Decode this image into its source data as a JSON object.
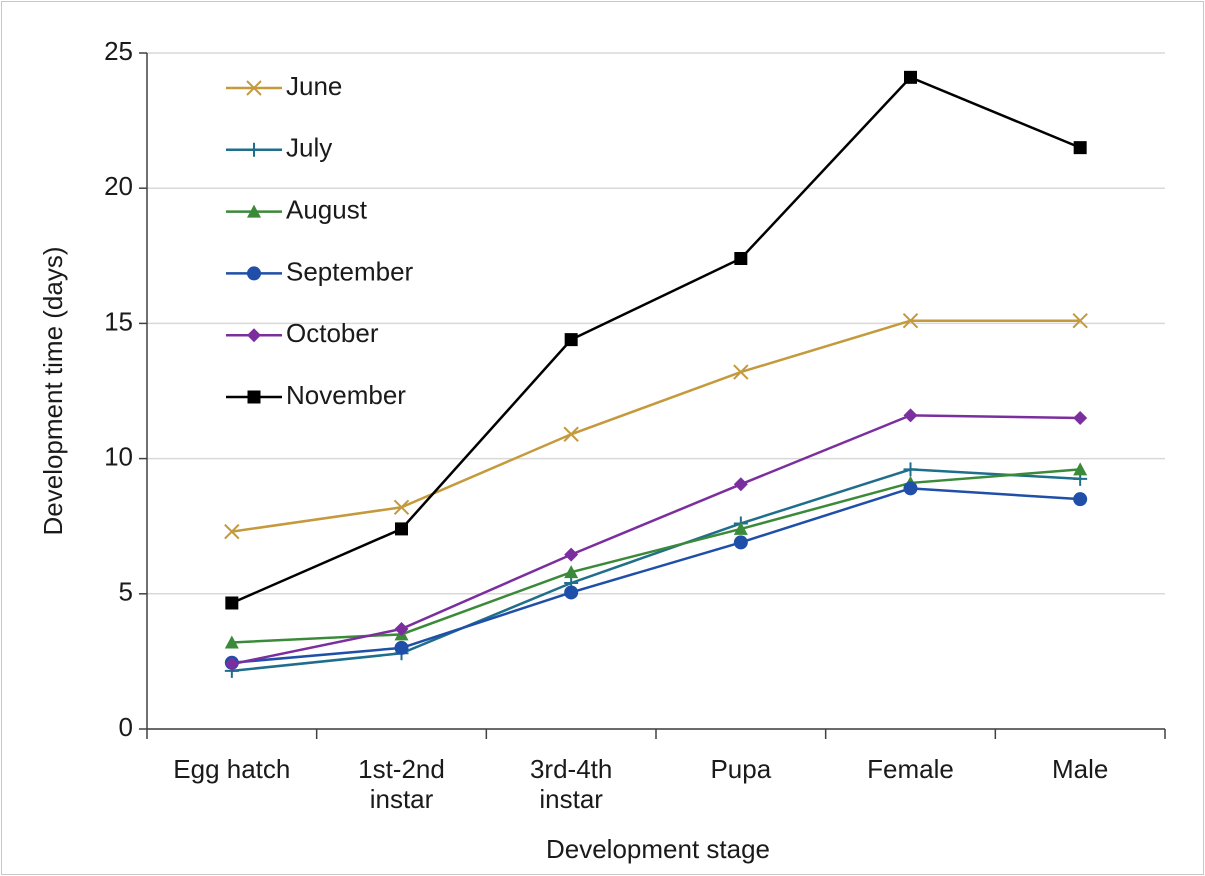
{
  "chart_data": {
    "type": "line",
    "x_label": "Development stage",
    "y_label": "Development time (days)",
    "categories": [
      "Egg hatch",
      "1st-2nd instar",
      "3rd-4th instar",
      "Pupa",
      "Female",
      "Male"
    ],
    "ylim": [
      0,
      25
    ],
    "yticks": [
      0,
      5,
      10,
      15,
      20,
      25
    ],
    "grid": true,
    "legend": "upper left",
    "series": [
      {
        "name": "June",
        "color": "#c49a3c",
        "marker": "x",
        "values": [
          7.3,
          8.2,
          10.9,
          13.2,
          15.1,
          15.1
        ]
      },
      {
        "name": "July",
        "color": "#1f6e8c",
        "marker": "plus",
        "values": [
          2.15,
          2.8,
          5.4,
          7.6,
          9.6,
          9.25
        ]
      },
      {
        "name": "August",
        "color": "#3a8a3a",
        "marker": "triangle",
        "values": [
          3.2,
          3.5,
          5.8,
          7.4,
          9.1,
          9.6
        ]
      },
      {
        "name": "September",
        "color": "#1f4fa8",
        "marker": "circle",
        "values": [
          2.45,
          3.0,
          5.05,
          6.9,
          8.9,
          8.5
        ]
      },
      {
        "name": "October",
        "color": "#7b2f9e",
        "marker": "diamond",
        "values": [
          2.4,
          3.7,
          6.45,
          9.05,
          11.6,
          11.5
        ]
      },
      {
        "name": "November",
        "color": "#000000",
        "marker": "square",
        "values": [
          4.66,
          7.4,
          14.4,
          17.4,
          24.1,
          21.5
        ]
      }
    ]
  }
}
